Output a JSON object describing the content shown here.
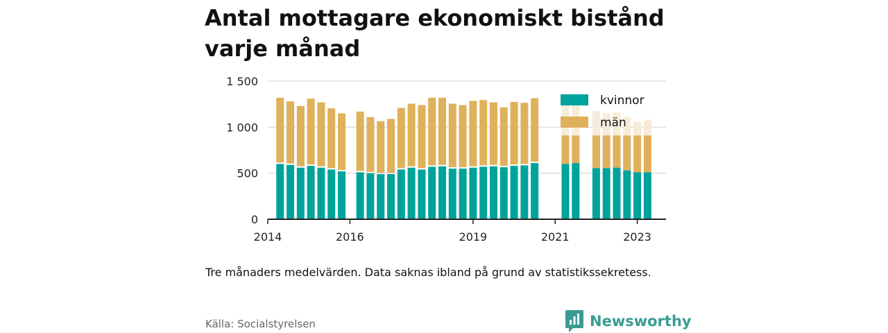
{
  "title": "Antal mottagare ekonomiskt bistånd varje månad",
  "note": "Tre månaders medelvärden. Data saknas ibland på grund av statistikssekretess.",
  "source": "Källa: Socialstyrelsen",
  "brand": "Newsworthy",
  "colors": {
    "kvinnor": "#00a39b",
    "man": "#dfb15b",
    "man_faded": "#f7ecd9",
    "kvinnor_faded": "#bfe8e6",
    "grid": "#dddddd",
    "axis": "#222222"
  },
  "chart_data": {
    "type": "bar",
    "stacked": true,
    "title": "Antal mottagare ekonomiskt bistånd varje månad",
    "ylim": [
      0,
      1500
    ],
    "yticks": [
      0,
      500,
      1000,
      1500
    ],
    "ytick_labels": [
      "0",
      "500",
      "1 000",
      "1 500"
    ],
    "xticks": [
      2014,
      2016,
      2019,
      2021,
      2023
    ],
    "xtick_labels": [
      "2014",
      "2016",
      "2019",
      "2021",
      "2023"
    ],
    "xlim": [
      2014.0,
      2023.7
    ],
    "legend": [
      "kvinnor",
      "män"
    ],
    "legend_position": "top-right",
    "grid": true,
    "x": [
      2014.3,
      2014.55,
      2014.8,
      2015.05,
      2015.3,
      2015.55,
      2015.8,
      2016.25,
      2016.5,
      2016.75,
      2017.0,
      2017.25,
      2017.5,
      2017.75,
      2018.0,
      2018.25,
      2018.5,
      2018.75,
      2019.0,
      2019.25,
      2019.5,
      2019.75,
      2020.0,
      2020.25,
      2020.5,
      2020.75,
      2021.25,
      2021.5,
      2022.0,
      2022.25,
      2022.5,
      2022.75,
      2023.0,
      2023.25
    ],
    "series": [
      {
        "name": "kvinnor",
        "values": [
          600,
          590,
          560,
          580,
          560,
          540,
          520,
          510,
          500,
          490,
          490,
          540,
          560,
          540,
          570,
          575,
          550,
          550,
          560,
          570,
          575,
          565,
          580,
          585,
          610,
          null,
          600,
          610,
          555,
          555,
          560,
          530,
          510,
          510
        ]
      },
      {
        "name": "män",
        "values": [
          720,
          690,
          670,
          730,
          710,
          665,
          630,
          660,
          610,
          575,
          600,
          670,
          695,
          700,
          750,
          745,
          705,
          690,
          725,
          725,
          695,
          650,
          695,
          680,
          705,
          null,
          null,
          null,
          null,
          null,
          null,
          null,
          null,
          null
        ]
      }
    ],
    "faded_totals": [
      null,
      null,
      null,
      null,
      null,
      null,
      null,
      null,
      null,
      null,
      null,
      null,
      null,
      null,
      null,
      null,
      null,
      null,
      null,
      null,
      null,
      null,
      null,
      null,
      null,
      null,
      1250,
      1250,
      1175,
      1150,
      1160,
      1110,
      1060,
      1080
    ]
  }
}
